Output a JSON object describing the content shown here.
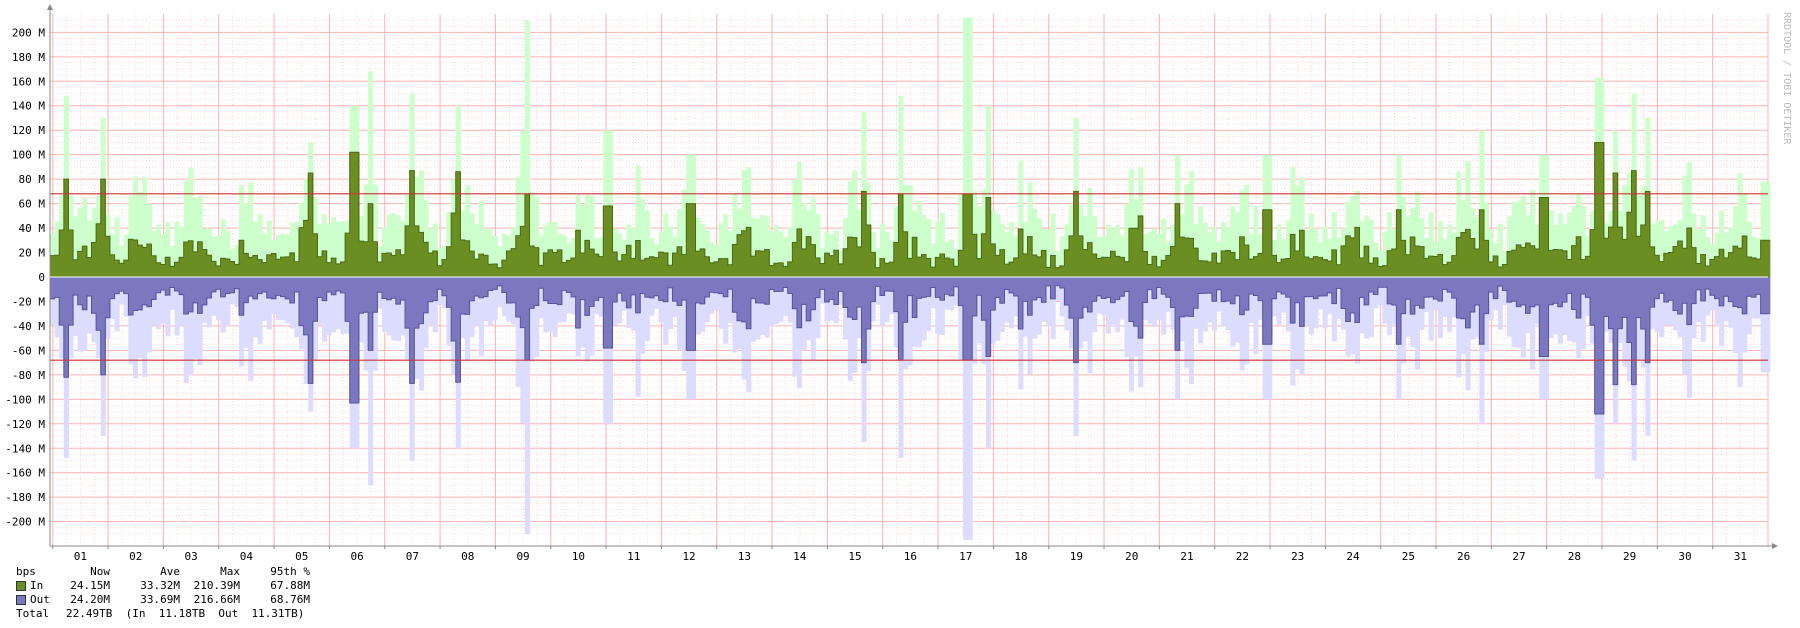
{
  "chart_data": {
    "type": "area",
    "title": "",
    "xlabel": "",
    "ylabel": "",
    "side_label": "RRDTOOL / TOBI OETIKER",
    "categories": [
      "01",
      "02",
      "03",
      "04",
      "05",
      "06",
      "07",
      "08",
      "09",
      "10",
      "11",
      "12",
      "13",
      "14",
      "15",
      "16",
      "17",
      "18",
      "19",
      "20",
      "21",
      "22",
      "23",
      "24",
      "25",
      "26",
      "27",
      "28",
      "29",
      "30",
      "31"
    ],
    "yticks": [
      "200 M",
      "180 M",
      "160 M",
      "140 M",
      "120 M",
      "100 M",
      "80 M",
      "60 M",
      "40 M",
      "20 M",
      "0",
      "-20 M",
      "-40 M",
      "-60 M",
      "-80 M",
      "-100 M",
      "-120 M",
      "-140 M",
      "-160 M",
      "-180 M",
      "-200 M"
    ],
    "ylim": [
      -215,
      215
    ],
    "x_range_days": [
      0.95,
      32.0
    ],
    "units": "Mbps",
    "threshold_lines": [
      68,
      -68
    ],
    "series": [
      {
        "name": "In",
        "color": "#6b8e23",
        "peak_color": "#ccffcc",
        "peaks": [
          {
            "day": 1.2,
            "avg": 80,
            "max": 148
          },
          {
            "day": 1.85,
            "avg": 80,
            "max": 130
          },
          {
            "day": 5.6,
            "avg": 85,
            "max": 110
          },
          {
            "day": 6.4,
            "avg": 102,
            "max": 140
          },
          {
            "day": 6.7,
            "avg": 60,
            "max": 168
          },
          {
            "day": 7.45,
            "avg": 87,
            "max": 150
          },
          {
            "day": 8.25,
            "avg": 86,
            "max": 140
          },
          {
            "day": 9.5,
            "avg": 68,
            "max": 210
          },
          {
            "day": 11.0,
            "avg": 58,
            "max": 120
          },
          {
            "day": 12.5,
            "avg": 60,
            "max": 100
          },
          {
            "day": 15.65,
            "avg": 70,
            "max": 135
          },
          {
            "day": 16.3,
            "avg": 68,
            "max": 148
          },
          {
            "day": 17.5,
            "avg": 68,
            "max": 212
          },
          {
            "day": 17.85,
            "avg": 65,
            "max": 140
          },
          {
            "day": 19.45,
            "avg": 70,
            "max": 130
          },
          {
            "day": 20.6,
            "avg": 50,
            "max": 90
          },
          {
            "day": 21.3,
            "avg": 60,
            "max": 100
          },
          {
            "day": 22.9,
            "avg": 55,
            "max": 100
          },
          {
            "day": 25.3,
            "avg": 55,
            "max": 100
          },
          {
            "day": 26.8,
            "avg": 55,
            "max": 120
          },
          {
            "day": 27.9,
            "avg": 65,
            "max": 100
          },
          {
            "day": 28.9,
            "avg": 110,
            "max": 163
          },
          {
            "day": 29.2,
            "avg": 85,
            "max": 120
          },
          {
            "day": 29.5,
            "avg": 87,
            "max": 150
          },
          {
            "day": 29.75,
            "avg": 70,
            "max": 130
          },
          {
            "day": 31.9,
            "avg": 30,
            "max": 78
          }
        ],
        "legend": {
          "now": "24.15M",
          "ave": "33.32M",
          "max": "210.39M",
          "p95": "67.88M"
        }
      },
      {
        "name": "Out",
        "color": "#7b78c0",
        "peak_color": "#dcdcff",
        "peaks": [
          {
            "day": 1.2,
            "avg": -82,
            "max": -148
          },
          {
            "day": 1.85,
            "avg": -80,
            "max": -130
          },
          {
            "day": 5.6,
            "avg": -87,
            "max": -110
          },
          {
            "day": 6.4,
            "avg": -103,
            "max": -140
          },
          {
            "day": 6.7,
            "avg": -60,
            "max": -170
          },
          {
            "day": 7.45,
            "avg": -87,
            "max": -150
          },
          {
            "day": 8.25,
            "avg": -86,
            "max": -140
          },
          {
            "day": 9.5,
            "avg": -68,
            "max": -210
          },
          {
            "day": 11.0,
            "avg": -58,
            "max": -120
          },
          {
            "day": 12.5,
            "avg": -60,
            "max": -100
          },
          {
            "day": 15.65,
            "avg": -70,
            "max": -135
          },
          {
            "day": 16.3,
            "avg": -68,
            "max": -148
          },
          {
            "day": 17.5,
            "avg": -68,
            "max": -215
          },
          {
            "day": 17.85,
            "avg": -65,
            "max": -140
          },
          {
            "day": 19.45,
            "avg": -70,
            "max": -130
          },
          {
            "day": 20.6,
            "avg": -50,
            "max": -90
          },
          {
            "day": 21.3,
            "avg": -60,
            "max": -100
          },
          {
            "day": 22.9,
            "avg": -55,
            "max": -100
          },
          {
            "day": 25.3,
            "avg": -55,
            "max": -100
          },
          {
            "day": 26.8,
            "avg": -55,
            "max": -120
          },
          {
            "day": 27.9,
            "avg": -65,
            "max": -100
          },
          {
            "day": 28.9,
            "avg": -112,
            "max": -165
          },
          {
            "day": 29.2,
            "avg": -88,
            "max": -120
          },
          {
            "day": 29.5,
            "avg": -88,
            "max": -150
          },
          {
            "day": 29.75,
            "avg": -70,
            "max": -130
          },
          {
            "day": 31.9,
            "avg": -30,
            "max": -78
          }
        ],
        "legend": {
          "now": "24.20M",
          "ave": "33.69M",
          "max": "216.66M",
          "p95": "68.76M"
        }
      }
    ],
    "baseline_avg_mbps": 25,
    "baseline_max_mbps": 45,
    "legend_header": {
      "unit": "bps",
      "now": "Now",
      "ave": "Ave",
      "max": "Max",
      "p95": "95th %"
    },
    "total": {
      "label": "Total",
      "value": "22.49TB",
      "text": "(In  11.18TB  Out  11.31TB)"
    },
    "grid": true,
    "colors": {
      "grid_minor": "#ffd6d6",
      "grid_major": "#ffb0b0",
      "threshold": "#cc3333",
      "axis": "#888888"
    }
  }
}
